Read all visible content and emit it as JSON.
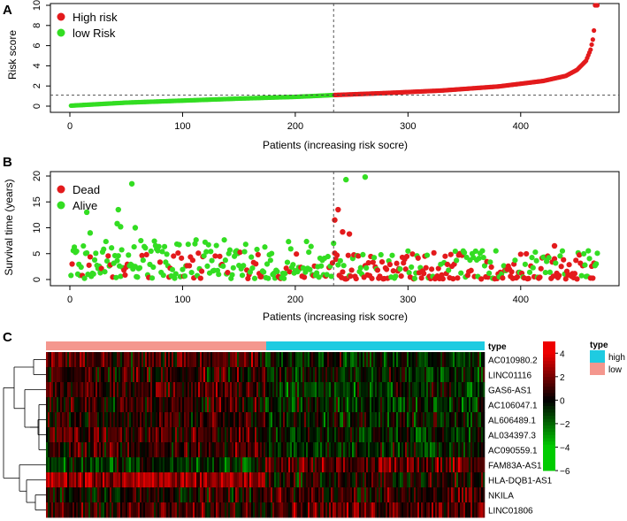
{
  "chart_data": [
    {
      "panel": "A",
      "type": "scatter",
      "title": "",
      "xlabel": "Patients (increasing risk socre)",
      "ylabel": "Risk score",
      "xlim": [
        0,
        470
      ],
      "ylim": [
        0,
        10
      ],
      "xticks": [
        0,
        100,
        200,
        300,
        400
      ],
      "yticks": [
        0,
        2,
        4,
        6,
        8,
        10
      ],
      "cutoff_index": 234,
      "cutoff_score": 1.1,
      "n_patients": 468,
      "series": [
        {
          "name": "High risk",
          "color": "#e31a1c",
          "range": [
            235,
            468
          ]
        },
        {
          "name": "low Risk",
          "color": "#33dd22",
          "range": [
            1,
            234
          ]
        }
      ],
      "risk_curve_anchors": [
        [
          1,
          0.05
        ],
        [
          50,
          0.35
        ],
        [
          100,
          0.55
        ],
        [
          150,
          0.75
        ],
        [
          200,
          0.92
        ],
        [
          234,
          1.1
        ],
        [
          280,
          1.3
        ],
        [
          330,
          1.55
        ],
        [
          380,
          1.95
        ],
        [
          420,
          2.5
        ],
        [
          440,
          3.0
        ],
        [
          450,
          3.6
        ],
        [
          458,
          4.5
        ],
        [
          462,
          5.6
        ],
        [
          464,
          6.6
        ],
        [
          465,
          7.5
        ],
        [
          466,
          10
        ],
        [
          468,
          10
        ]
      ],
      "legend": {
        "position": "top-left",
        "entries": [
          "High risk",
          "low Risk"
        ]
      }
    },
    {
      "panel": "B",
      "type": "scatter",
      "title": "",
      "xlabel": "Patients (increasing risk socre)",
      "ylabel": "Survival time (years)",
      "xlim": [
        0,
        470
      ],
      "ylim": [
        0,
        20
      ],
      "xticks": [
        0,
        100,
        200,
        300,
        400
      ],
      "yticks": [
        0,
        5,
        10,
        15,
        20
      ],
      "cutoff_index": 234,
      "series": [
        {
          "name": "Dead",
          "color": "#e31a1c"
        },
        {
          "name": "Alive",
          "color": "#33dd22"
        }
      ],
      "notable_points": [
        {
          "x": 55,
          "y": 18.5,
          "status": "Alive"
        },
        {
          "x": 43,
          "y": 13.5,
          "status": "Alive"
        },
        {
          "x": 15,
          "y": 13.0,
          "status": "Alive"
        },
        {
          "x": 42,
          "y": 10.8,
          "status": "Alive"
        },
        {
          "x": 45,
          "y": 10.2,
          "status": "Alive"
        },
        {
          "x": 58,
          "y": 10.0,
          "status": "Alive"
        },
        {
          "x": 18,
          "y": 9.0,
          "status": "Alive"
        },
        {
          "x": 238,
          "y": 13.5,
          "status": "Dead"
        },
        {
          "x": 235,
          "y": 11.5,
          "status": "Dead"
        },
        {
          "x": 245,
          "y": 19.3,
          "status": "Alive"
        },
        {
          "x": 262,
          "y": 19.8,
          "status": "Alive"
        },
        {
          "x": 242,
          "y": 9.2,
          "status": "Dead"
        },
        {
          "x": 248,
          "y": 8.8,
          "status": "Dead"
        },
        {
          "x": 430,
          "y": 6.5,
          "status": "Dead"
        }
      ],
      "legend": {
        "position": "top-left",
        "entries": [
          "Dead",
          "Alive"
        ]
      }
    },
    {
      "panel": "C",
      "type": "heatmap",
      "title": "",
      "annotation_label": "type",
      "annotation_groups": [
        {
          "name": "low",
          "color": "#f4978e"
        },
        {
          "name": "high",
          "color": "#1ecbe1"
        }
      ],
      "genes": [
        "AC010980.2",
        "LINC01116",
        "GAS6-AS1",
        "AC106047.1",
        "AL606489.1",
        "AL034397.3",
        "AC090559.1",
        "FAM83A-AS1",
        "HLA-DQB1-AS1",
        "NKILA",
        "LINC01806"
      ],
      "row_tendency": {
        "AC010980.2": [
          0.9,
          -0.4
        ],
        "LINC01116": [
          0.4,
          -0.3
        ],
        "GAS6-AS1": [
          0.9,
          -0.6
        ],
        "AC106047.1": [
          0.4,
          -0.5
        ],
        "AL606489.1": [
          0.5,
          -0.3
        ],
        "AL034397.3": [
          0.6,
          -0.3
        ],
        "AC090559.1": [
          0.7,
          -0.4
        ],
        "FAM83A-AS1": [
          -0.8,
          1.1
        ],
        "HLA-DQB1-AS1": [
          1.9,
          0.2
        ],
        "NKILA": [
          0.2,
          0.6
        ],
        "LINC01806": [
          0.7,
          1.2
        ]
      },
      "color_scale": {
        "ticks": [
          4,
          2,
          0,
          -2,
          -4,
          -6
        ],
        "min": -6,
        "max": 5,
        "low_color": "#00cc00",
        "mid_color": "#000000",
        "high_color": "#ee0000"
      },
      "legend": {
        "title": "type",
        "entries": [
          "high",
          "low"
        ]
      }
    }
  ],
  "panel_labels": [
    "A",
    "B",
    "C"
  ]
}
